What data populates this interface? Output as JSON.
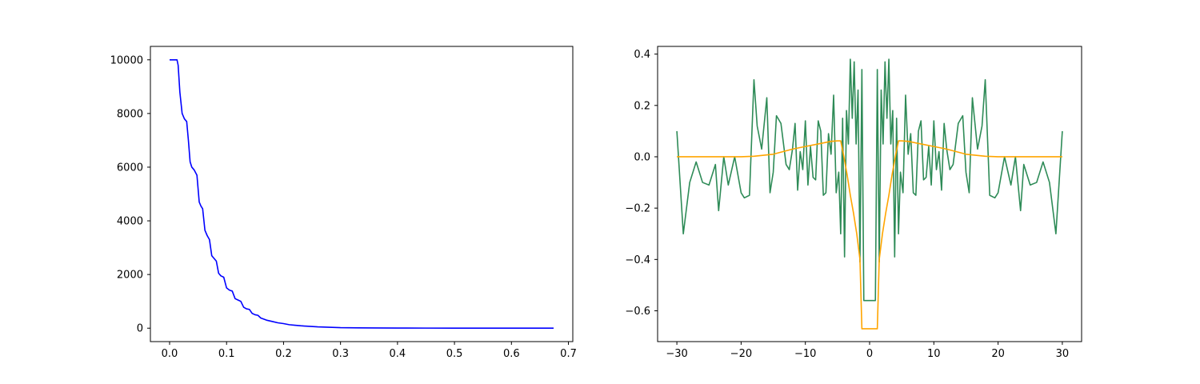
{
  "figure": {
    "background": "#ffffff"
  },
  "chart_data": [
    {
      "type": "line",
      "title": "",
      "xlabel": "",
      "ylabel": "",
      "xlim": [
        -0.0337,
        0.7077
      ],
      "ylim": [
        -500,
        10500
      ],
      "xticks": [
        0.0,
        0.1,
        0.2,
        0.3,
        0.4,
        0.5,
        0.6,
        0.7
      ],
      "xtick_labels": [
        "0.0",
        "0.1",
        "0.2",
        "0.3",
        "0.4",
        "0.5",
        "0.6",
        "0.7"
      ],
      "yticks": [
        0,
        2000,
        4000,
        6000,
        8000,
        10000
      ],
      "ytick_labels": [
        "0",
        "2000",
        "4000",
        "6000",
        "8000",
        "10000"
      ],
      "grid": false,
      "series": [
        {
          "color": "#0000ff",
          "x": [
            0.0,
            0.013,
            0.015,
            0.018,
            0.022,
            0.026,
            0.03,
            0.033,
            0.036,
            0.039,
            0.043,
            0.048,
            0.052,
            0.055,
            0.058,
            0.062,
            0.066,
            0.07,
            0.074,
            0.078,
            0.082,
            0.086,
            0.09,
            0.095,
            0.1,
            0.105,
            0.11,
            0.115,
            0.12,
            0.125,
            0.13,
            0.135,
            0.14,
            0.145,
            0.15,
            0.155,
            0.16,
            0.17,
            0.18,
            0.19,
            0.2,
            0.21,
            0.22,
            0.23,
            0.24,
            0.26,
            0.28,
            0.3,
            0.33,
            0.36,
            0.4,
            0.45,
            0.5,
            0.55,
            0.6,
            0.65,
            0.674
          ],
          "y": [
            10000,
            10000,
            9800,
            8800,
            8000,
            7800,
            7700,
            7000,
            6200,
            6000,
            5900,
            5700,
            4700,
            4550,
            4450,
            3650,
            3450,
            3300,
            2700,
            2600,
            2500,
            2050,
            1950,
            1900,
            1500,
            1420,
            1380,
            1100,
            1050,
            1000,
            780,
            720,
            700,
            550,
            500,
            480,
            380,
            300,
            250,
            200,
            170,
            130,
            110,
            90,
            75,
            50,
            35,
            20,
            12,
            8,
            5,
            3,
            2,
            1,
            1,
            0,
            0
          ]
        }
      ]
    },
    {
      "type": "line",
      "title": "",
      "xlabel": "",
      "ylabel": "",
      "xlim": [
        -33,
        33
      ],
      "ylim": [
        -0.72,
        0.43
      ],
      "xticks": [
        -30,
        -20,
        -10,
        0,
        10,
        20,
        30
      ],
      "xtick_labels": [
        "−30",
        "−20",
        "−10",
        "0",
        "10",
        "20",
        "30"
      ],
      "yticks": [
        -0.6,
        -0.4,
        -0.2,
        0.0,
        0.2,
        0.4
      ],
      "ytick_labels": [
        "−0.6",
        "−0.4",
        "−0.2",
        "0.0",
        "0.2",
        "0.4"
      ],
      "grid": false,
      "series": [
        {
          "color": "#2e8b57",
          "x": [
            -30.0,
            -29.0,
            -28.0,
            -27.0,
            -26.0,
            -25.0,
            -24.0,
            -23.5,
            -22.7,
            -22.0,
            -21.0,
            -20.0,
            -19.5,
            -18.7,
            -18.0,
            -17.5,
            -16.8,
            -16.0,
            -15.5,
            -15.0,
            -14.5,
            -13.8,
            -13.0,
            -12.5,
            -12.0,
            -11.6,
            -11.2,
            -10.8,
            -10.4,
            -10.0,
            -9.6,
            -9.2,
            -8.8,
            -8.4,
            -8.0,
            -7.6,
            -7.2,
            -6.8,
            -6.4,
            -6.0,
            -5.6,
            -5.2,
            -4.8,
            -4.5,
            -4.2,
            -3.9,
            -3.6,
            -3.3,
            -3.0,
            -2.7,
            -2.4,
            -2.1,
            -1.8,
            -1.5,
            -1.2,
            -0.9,
            -0.5,
            0.0,
            0.5,
            0.9,
            1.2,
            1.5,
            1.8,
            2.1,
            2.4,
            2.7,
            3.0,
            3.3,
            3.6,
            3.9,
            4.2,
            4.5,
            4.8,
            5.2,
            5.6,
            6.0,
            6.4,
            6.8,
            7.2,
            7.6,
            8.0,
            8.4,
            8.8,
            9.2,
            9.6,
            10.0,
            10.4,
            10.8,
            11.2,
            11.6,
            12.0,
            12.5,
            13.0,
            13.8,
            14.5,
            15.0,
            15.5,
            16.0,
            16.8,
            17.5,
            18.0,
            18.7,
            19.5,
            20.0,
            21.0,
            22.0,
            22.7,
            23.5,
            24.0,
            25.0,
            26.0,
            27.0,
            28.0,
            29.0,
            30.0
          ],
          "y": [
            0.1,
            -0.3,
            -0.1,
            -0.02,
            -0.1,
            -0.11,
            -0.03,
            -0.21,
            0.0,
            -0.11,
            0.0,
            -0.14,
            -0.16,
            -0.15,
            0.3,
            0.12,
            0.03,
            0.23,
            -0.14,
            -0.06,
            0.16,
            0.13,
            -0.03,
            -0.05,
            0.03,
            0.13,
            -0.13,
            0.02,
            -0.05,
            0.14,
            -0.11,
            0.04,
            -0.08,
            -0.09,
            0.14,
            0.1,
            -0.15,
            -0.14,
            0.09,
            0.01,
            0.24,
            -0.14,
            -0.06,
            -0.3,
            0.15,
            -0.39,
            0.18,
            0.05,
            0.38,
            0.15,
            0.37,
            0.05,
            0.26,
            -0.41,
            0.34,
            -0.56,
            -0.56,
            -0.56,
            -0.56,
            -0.56,
            0.34,
            -0.41,
            0.26,
            0.05,
            0.37,
            0.15,
            0.38,
            0.05,
            0.18,
            -0.39,
            0.15,
            -0.3,
            -0.06,
            -0.14,
            0.24,
            0.01,
            0.09,
            -0.14,
            -0.15,
            0.1,
            0.14,
            -0.09,
            -0.08,
            0.04,
            -0.11,
            0.14,
            -0.05,
            0.02,
            -0.13,
            0.13,
            0.03,
            -0.05,
            -0.03,
            0.13,
            0.16,
            -0.06,
            -0.14,
            0.23,
            0.03,
            0.12,
            0.3,
            -0.15,
            -0.16,
            -0.14,
            0.0,
            -0.11,
            0.0,
            -0.21,
            -0.03,
            -0.11,
            -0.1,
            -0.02,
            -0.1,
            -0.3,
            0.1
          ]
        },
        {
          "color": "#ffa500",
          "x": [
            -30.0,
            -25.0,
            -20.0,
            -18.0,
            -15.0,
            -12.0,
            -10.0,
            -8.0,
            -6.0,
            -5.0,
            -4.5,
            -4.0,
            -3.5,
            -3.0,
            -2.5,
            -2.0,
            -1.5,
            -1.2,
            -0.9,
            0.0,
            0.9,
            1.2,
            1.5,
            2.0,
            2.5,
            3.0,
            3.5,
            4.0,
            4.5,
            5.0,
            6.0,
            8.0,
            10.0,
            12.0,
            15.0,
            18.0,
            20.0,
            25.0,
            30.0
          ],
          "y": [
            0.0,
            0.0,
            0.0,
            0.002,
            0.01,
            0.03,
            0.04,
            0.05,
            0.06,
            0.062,
            0.062,
            0.0,
            -0.07,
            -0.15,
            -0.22,
            -0.3,
            -0.4,
            -0.67,
            -0.67,
            -0.67,
            -0.67,
            -0.67,
            -0.4,
            -0.3,
            -0.22,
            -0.15,
            -0.07,
            0.0,
            0.062,
            0.062,
            0.06,
            0.05,
            0.04,
            0.03,
            0.01,
            0.002,
            0.0,
            0.0,
            0.0
          ]
        }
      ]
    }
  ]
}
